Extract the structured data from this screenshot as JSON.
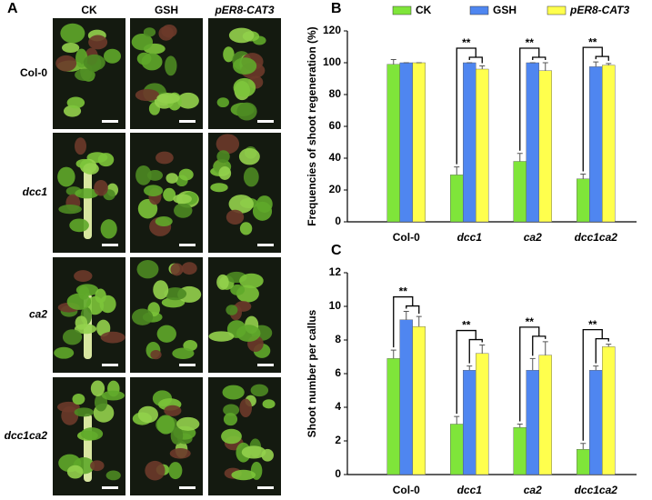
{
  "panel_a": {
    "label": "A",
    "columns": [
      "CK",
      "GSH",
      "pER8-CAT3"
    ],
    "rows": [
      "Col-0",
      "dcc1",
      "ca2",
      "dcc1ca2"
    ]
  },
  "chart_data": [
    {
      "type": "bar",
      "panel_label": "B",
      "ylabel": "Frequencies of shoot regeneration (%)",
      "categories": [
        "Col-0",
        "dcc1",
        "ca2",
        "dcc1ca2"
      ],
      "series": [
        {
          "name": "CK",
          "color": "#7fe53a",
          "values": [
            99,
            29.5,
            38,
            27
          ],
          "errors": [
            3,
            5,
            5,
            3
          ]
        },
        {
          "name": "GSH",
          "color": "#4f86f0",
          "values": [
            100,
            100,
            100,
            97.5
          ],
          "errors": [
            0,
            0,
            0,
            3
          ]
        },
        {
          "name": "pER8-CAT3",
          "color": "#ffff4d",
          "values": [
            100,
            96,
            95,
            98.5
          ],
          "errors": [
            0,
            2,
            5,
            1
          ]
        }
      ],
      "significance": [
        null,
        "**",
        "**",
        "**"
      ],
      "ylim": [
        0,
        120
      ],
      "yticks": [
        0,
        20,
        40,
        60,
        80,
        100,
        120
      ],
      "legend": "top"
    },
    {
      "type": "bar",
      "panel_label": "C",
      "ylabel": "Shoot number per callus",
      "categories": [
        "Col-0",
        "dcc1",
        "ca2",
        "dcc1ca2"
      ],
      "series": [
        {
          "color": "#7fe53a",
          "values": [
            6.9,
            3,
            2.8,
            1.5
          ],
          "errors": [
            0.5,
            0.45,
            0.2,
            0.35
          ]
        },
        {
          "color": "#4f86f0",
          "values": [
            9.2,
            6.2,
            6.2,
            6.2
          ],
          "errors": [
            0.5,
            0.25,
            0.7,
            0.25
          ]
        },
        {
          "color": "#ffff4d",
          "values": [
            8.8,
            7.2,
            7.1,
            7.6
          ],
          "errors": [
            0.6,
            0.5,
            0.8,
            0.15
          ]
        }
      ],
      "significance": [
        "**",
        "**",
        "**",
        "**"
      ],
      "ylim": [
        0,
        12
      ],
      "yticks": [
        0,
        2,
        4,
        6,
        8,
        10,
        12
      ]
    }
  ]
}
